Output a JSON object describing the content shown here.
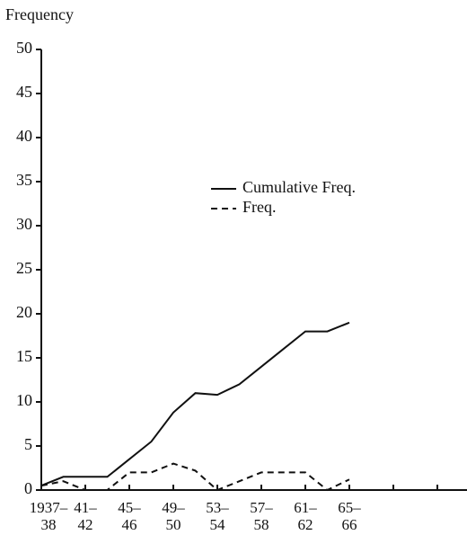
{
  "chart_data": {
    "type": "line",
    "y_label": "Frequency",
    "categories": [
      "1937–\n38",
      null,
      "41–\n42",
      null,
      "45–\n46",
      null,
      "49–\n50",
      null,
      "53–\n54",
      null,
      "57–\n58",
      null,
      "61–\n62",
      null,
      "65–\n66",
      null,
      null,
      null,
      null
    ],
    "series": [
      {
        "name": "Cumulative Freq.",
        "color": "#111111",
        "dash": "none",
        "values": [
          0.5,
          1.5,
          1.5,
          1.5,
          3.5,
          5.5,
          8.8,
          11,
          10.8,
          12,
          14,
          16,
          18,
          18,
          19,
          null,
          null,
          null,
          null
        ]
      },
      {
        "name": "Freq.",
        "color": "#111111",
        "dash": "7,5",
        "values": [
          0.5,
          1,
          0,
          0,
          2,
          2,
          3,
          2.2,
          0,
          1,
          2,
          2,
          2,
          0,
          1.2,
          null,
          null,
          null,
          null
        ]
      }
    ],
    "ylim": [
      0,
      50
    ],
    "yticks": [
      0,
      5,
      10,
      15,
      20,
      25,
      30,
      35,
      40,
      45,
      50
    ],
    "grid": false
  }
}
